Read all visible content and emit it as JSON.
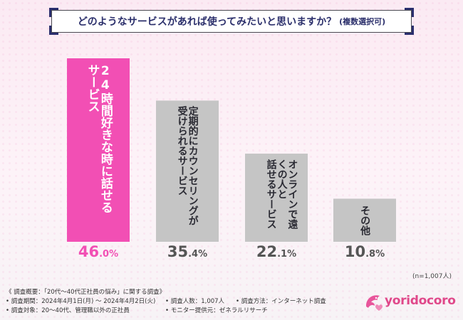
{
  "title": {
    "main": "どのようなサービスがあれば使ってみたいと思いますか？",
    "sub": "(複数選択可)"
  },
  "colors": {
    "highlight": "#f24fb4",
    "highlight_text": "#ffffff",
    "bar": "#c5c5c5",
    "label_dark": "#2a2a33",
    "pct_highlight": "#f24fb4",
    "pct_normal": "#555555"
  },
  "chart_data": {
    "type": "bar",
    "title": "どのようなサービスがあれば使ってみたいと思いますか？(複数選択可)",
    "categories": [
      "24時間好きな時に話せるサービス",
      "定期的にカウンセリングが受けられるサービス",
      "オンラインで遠くの人と話せるサービス",
      "その他"
    ],
    "label_lines": [
      [
        "24時間好きな時に話せる",
        "サービス"
      ],
      [
        "定期的にカウンセリングが",
        "受けられるサービス"
      ],
      [
        "オンラインで遠くの人と",
        "話せるサービス"
      ],
      [
        "その他"
      ]
    ],
    "values": [
      46.0,
      35.4,
      22.1,
      10.8
    ],
    "value_labels": [
      {
        "int": "46",
        "dec": ".0%"
      },
      {
        "int": "35",
        "dec": ".4%"
      },
      {
        "int": "22",
        "dec": ".1%"
      },
      {
        "int": "10",
        "dec": ".8%"
      }
    ],
    "unit": "%",
    "highlight_index": 0,
    "ylim": [
      0,
      46.0
    ],
    "xlabel": "",
    "ylabel": ""
  },
  "n_note": "(n=1,007人)",
  "footer": {
    "header": "《 調査概要：「20代～40代正社員の悩み」に関する調査》",
    "period": "• 調査期間：2024年4月1日(月) ～ 2024年4月2日(火)",
    "target": "• 調査対象：20～40代、管理職以外の正社員",
    "count": "• 調査人数：1,007人",
    "provider": "• モニター提供元：ゼネラルリサーチ",
    "method": "• 調査方法：インターネット調査"
  },
  "logo": {
    "text": "yoridocoro",
    "icon": "dolphin-icon"
  }
}
